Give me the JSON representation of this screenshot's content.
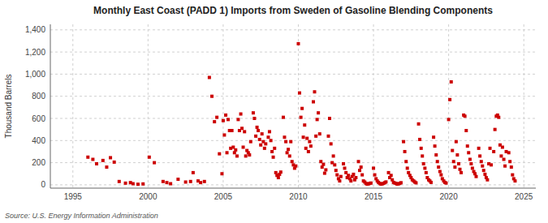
{
  "chart_data": {
    "type": "scatter",
    "title": "Monthly East Coast (PADD 1) Imports from Sweden of Gasoline Blending Components",
    "y_label": "Thousand Barrels",
    "source": "Source: U.S. Energy Information Administration",
    "color": "#cc0000",
    "marker": "square",
    "grid": true,
    "xlim": [
      1993.5,
      2025.8
    ],
    "ylim": [
      -30,
      1450
    ],
    "xticks": [
      1995,
      2000,
      2005,
      2010,
      2015,
      2020,
      2025
    ],
    "yticks": [
      0,
      200,
      400,
      600,
      800,
      {
        "value": 1000,
        "label": "1,000"
      },
      {
        "value": 1200,
        "label": "1,200"
      },
      {
        "value": 1400,
        "label": "1,400"
      }
    ],
    "x": [
      1996.0,
      1996.33,
      1996.58,
      1997.0,
      1997.25,
      1997.5,
      1997.75,
      1998.08,
      1998.5,
      1998.83,
      1999.0,
      1999.33,
      1999.67,
      2000.08,
      2000.42,
      2001.0,
      2001.25,
      2001.5,
      2002.0,
      2002.5,
      2002.83,
      2003.0,
      2003.33,
      2003.5,
      2003.75,
      2004.08,
      2004.25,
      2004.42,
      2004.58,
      2004.75,
      2004.92,
      2005.0,
      2005.08,
      2005.17,
      2005.25,
      2005.33,
      2005.42,
      2005.5,
      2005.58,
      2005.67,
      2005.75,
      2005.83,
      2005.92,
      2006.0,
      2006.08,
      2006.17,
      2006.25,
      2006.33,
      2006.42,
      2006.5,
      2006.58,
      2006.67,
      2006.75,
      2006.83,
      2007.0,
      2007.08,
      2007.17,
      2007.25,
      2007.33,
      2007.42,
      2007.5,
      2007.58,
      2007.67,
      2007.75,
      2007.83,
      2008.0,
      2008.08,
      2008.17,
      2008.25,
      2008.33,
      2008.42,
      2008.5,
      2008.58,
      2008.67,
      2008.75,
      2008.83,
      2009.0,
      2009.08,
      2009.17,
      2009.25,
      2009.33,
      2009.42,
      2009.5,
      2009.58,
      2009.67,
      2009.75,
      2009.83,
      2010.0,
      2010.08,
      2010.17,
      2010.25,
      2010.33,
      2010.42,
      2010.5,
      2010.58,
      2010.67,
      2010.75,
      2010.83,
      2011.0,
      2011.08,
      2011.17,
      2011.25,
      2011.33,
      2011.42,
      2011.5,
      2011.58,
      2011.67,
      2011.75,
      2011.83,
      2012.0,
      2012.08,
      2012.17,
      2012.25,
      2012.33,
      2012.42,
      2012.5,
      2012.58,
      2012.67,
      2012.75,
      2012.83,
      2013.0,
      2013.08,
      2013.17,
      2013.25,
      2013.33,
      2013.42,
      2013.5,
      2013.58,
      2013.67,
      2013.75,
      2013.83,
      2014.0,
      2014.08,
      2014.17,
      2014.25,
      2014.33,
      2014.42,
      2014.5,
      2014.58,
      2014.67,
      2014.75,
      2014.83,
      2015.0,
      2015.08,
      2015.17,
      2015.25,
      2015.33,
      2015.42,
      2015.5,
      2015.58,
      2015.67,
      2015.75,
      2015.83,
      2016.0,
      2016.08,
      2016.17,
      2016.25,
      2016.33,
      2016.42,
      2016.5,
      2016.58,
      2016.67,
      2016.75,
      2016.83,
      2017.0,
      2017.08,
      2017.17,
      2017.25,
      2017.33,
      2017.42,
      2017.5,
      2017.58,
      2017.67,
      2017.75,
      2017.83,
      2018.0,
      2018.08,
      2018.17,
      2018.25,
      2018.33,
      2018.42,
      2018.5,
      2018.58,
      2018.67,
      2018.75,
      2018.83,
      2019.0,
      2019.08,
      2019.17,
      2019.25,
      2019.33,
      2019.42,
      2019.5,
      2019.58,
      2019.67,
      2019.75,
      2019.83,
      2020.0,
      2020.08,
      2020.17,
      2020.25,
      2020.33,
      2020.42,
      2020.5,
      2020.58,
      2020.67,
      2020.75,
      2020.83,
      2021.0,
      2021.08,
      2021.17,
      2021.25,
      2021.33,
      2021.42,
      2021.5,
      2021.58,
      2021.67,
      2021.75,
      2021.83,
      2022.0,
      2022.08,
      2022.17,
      2022.25,
      2022.33,
      2022.42,
      2022.5,
      2022.58,
      2022.67,
      2022.75,
      2022.83,
      2023.0,
      2023.08,
      2023.17,
      2023.25,
      2023.33,
      2023.42,
      2023.5,
      2023.58,
      2023.67,
      2023.75,
      2023.83,
      2024.0,
      2024.08,
      2024.17,
      2024.25,
      2024.33,
      2024.42
    ],
    "values": [
      250,
      230,
      190,
      220,
      160,
      245,
      205,
      30,
      15,
      20,
      10,
      5,
      8,
      250,
      200,
      30,
      20,
      10,
      50,
      25,
      30,
      110,
      35,
      20,
      30,
      970,
      800,
      570,
      610,
      280,
      100,
      580,
      450,
      630,
      290,
      590,
      490,
      330,
      490,
      340,
      290,
      315,
      260,
      590,
      490,
      640,
      510,
      340,
      480,
      260,
      310,
      290,
      270,
      390,
      650,
      600,
      440,
      520,
      490,
      410,
      360,
      460,
      390,
      330,
      370,
      430,
      480,
      400,
      300,
      250,
      330,
      110,
      85,
      65,
      95,
      115,
      610,
      430,
      390,
      290,
      320,
      260,
      390,
      210,
      180,
      150,
      170,
      1275,
      830,
      610,
      690,
      430,
      540,
      330,
      420,
      300,
      390,
      350,
      750,
      840,
      440,
      590,
      650,
      460,
      210,
      160,
      185,
      105,
      135,
      440,
      600,
      370,
      200,
      260,
      180,
      130,
      90,
      55,
      35,
      75,
      190,
      150,
      110,
      65,
      85,
      55,
      35,
      75,
      95,
      45,
      65,
      210,
      130,
      160,
      90,
      35,
      25,
      12,
      6,
      9,
      13,
      16,
      150,
      90,
      55,
      35,
      22,
      12,
      6,
      9,
      13,
      19,
      26,
      110,
      65,
      85,
      45,
      22,
      16,
      12,
      6,
      9,
      13,
      19,
      390,
      300,
      210,
      150,
      110,
      85,
      65,
      45,
      35,
      25,
      18,
      550,
      410,
      330,
      260,
      190,
      150,
      110,
      65,
      45,
      35,
      22,
      430,
      350,
      270,
      210,
      160,
      120,
      90,
      55,
      35,
      22,
      16,
      590,
      770,
      930,
      310,
      210,
      160,
      390,
      270,
      190,
      140,
      110,
      630,
      620,
      490,
      350,
      290,
      230,
      190,
      150,
      120,
      100,
      75,
      330,
      260,
      210,
      170,
      130,
      95,
      65,
      45,
      190,
      330,
      180,
      300,
      500,
      620,
      630,
      610,
      360,
      260,
      340,
      230,
      170,
      300,
      290,
      210,
      160,
      90,
      55,
      35
    ]
  }
}
